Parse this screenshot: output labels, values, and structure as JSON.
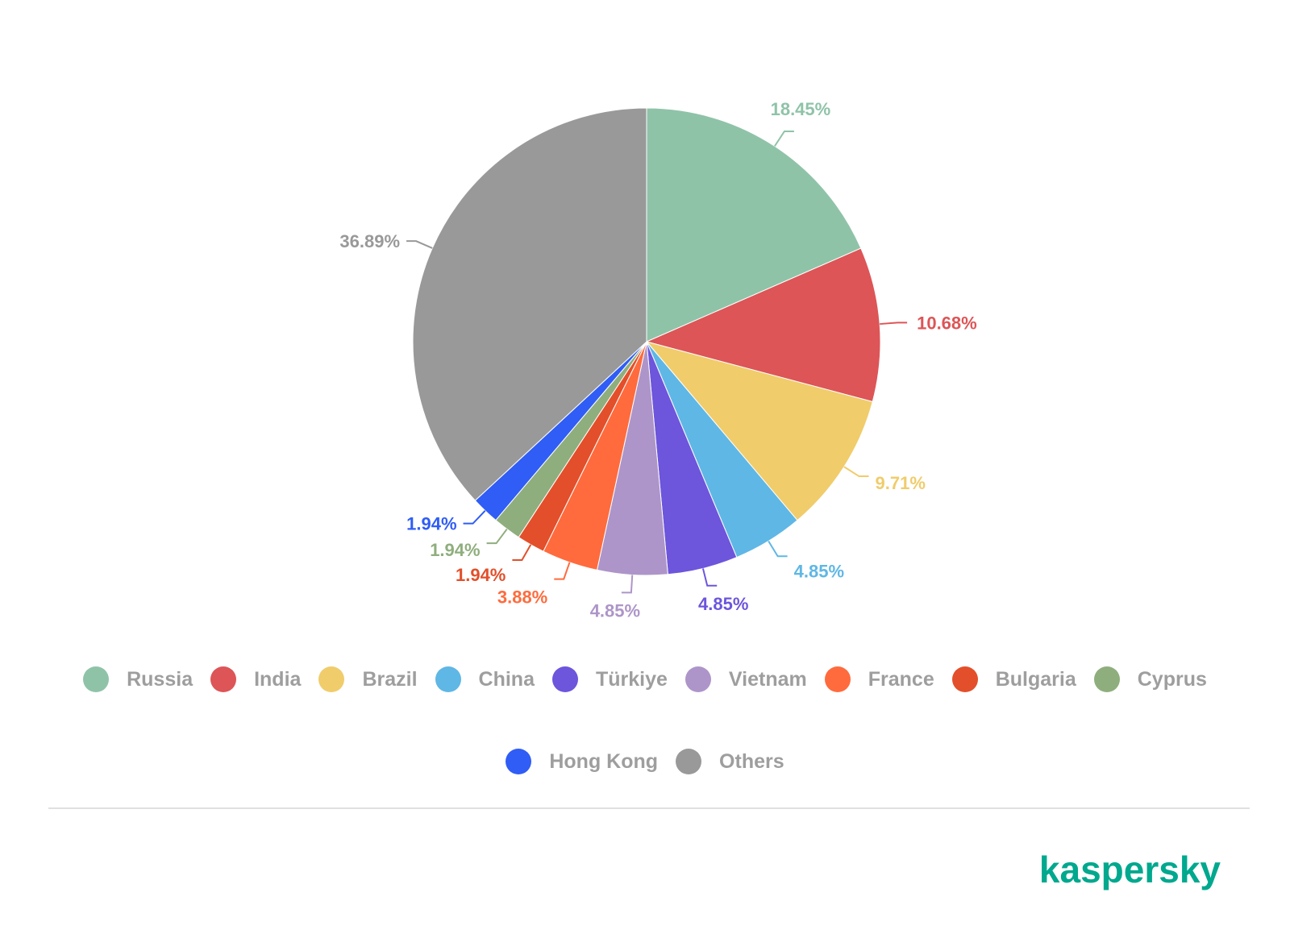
{
  "chart_data": {
    "type": "pie",
    "start_angle_deg": 0,
    "direction": "clockwise",
    "slices": [
      {
        "name": "Russia",
        "value": 18.45,
        "label": "18.45%",
        "color": "#8fc3a8"
      },
      {
        "name": "India",
        "value": 10.68,
        "label": "10.68%",
        "color": "#dd5557"
      },
      {
        "name": "Brazil",
        "value": 9.71,
        "label": "9.71%",
        "color": "#f0cc6b"
      },
      {
        "name": "China",
        "value": 4.85,
        "label": "4.85%",
        "color": "#5fb7e5"
      },
      {
        "name": "Türkiye",
        "value": 4.85,
        "label": "4.85%",
        "color": "#6d55dc"
      },
      {
        "name": "Vietnam",
        "value": 4.85,
        "label": "4.85%",
        "color": "#ad95c9"
      },
      {
        "name": "France",
        "value": 3.88,
        "label": "3.88%",
        "color": "#ff6b3d"
      },
      {
        "name": "Bulgaria",
        "value": 1.94,
        "label": "1.94%",
        "color": "#e34f2a"
      },
      {
        "name": "Cyprus",
        "value": 1.94,
        "label": "1.94%",
        "color": "#8fae7d"
      },
      {
        "name": "Hong Kong",
        "value": 1.94,
        "label": "1.94%",
        "color": "#2f5df5"
      },
      {
        "name": "Others",
        "value": 36.89,
        "label": "36.89%",
        "color": "#999999"
      }
    ],
    "legend_position": "bottom"
  },
  "brand": {
    "logo_text": "kaspersky",
    "color": "#00a88e"
  }
}
